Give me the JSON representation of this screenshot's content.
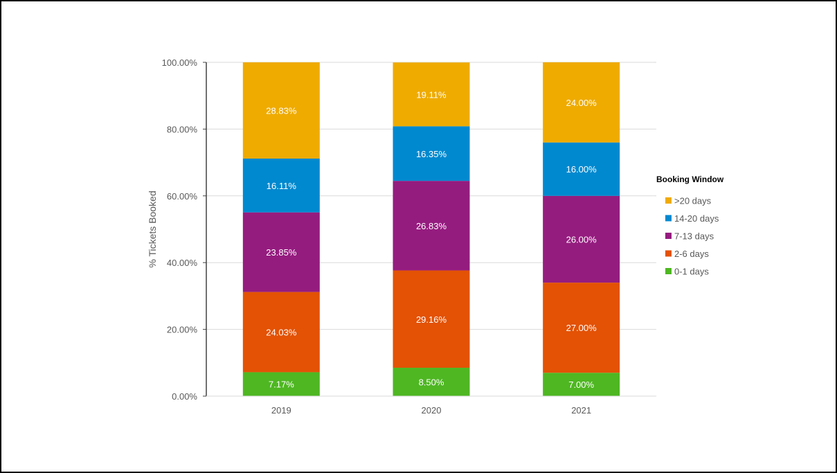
{
  "chart_data": {
    "type": "bar",
    "stacked": true,
    "percent_stacked": true,
    "categories": [
      "2019",
      "2020",
      "2021"
    ],
    "series": [
      {
        "name": "0-1 days",
        "color": "#4EB722",
        "values": [
          7.17,
          8.5,
          7.0
        ],
        "labels": [
          "7.17%",
          "8.50%",
          "7.00%"
        ]
      },
      {
        "name": "2-6 days",
        "color": "#E35205",
        "values": [
          24.03,
          29.16,
          27.0
        ],
        "labels": [
          "24.03%",
          "29.16%",
          "27.00%"
        ]
      },
      {
        "name": "7-13 days",
        "color": "#951C7F",
        "values": [
          23.85,
          26.83,
          26.0
        ],
        "labels": [
          "23.85%",
          "26.83%",
          "26.00%"
        ]
      },
      {
        "name": "14-20 days",
        "color": "#0089CF",
        "values": [
          16.11,
          16.35,
          16.0
        ],
        "labels": [
          "16.11%",
          "16.35%",
          "16.00%"
        ]
      },
      {
        "name": ">20 days",
        "color": "#EFAB00",
        "values": [
          28.83,
          19.11,
          24.0
        ],
        "labels": [
          "28.83%",
          "19.11%",
          "24.00%"
        ]
      }
    ],
    "title": "",
    "xlabel": "",
    "ylabel": "% Tickets Booked",
    "ylim": [
      0,
      100
    ],
    "yticks": [
      "0.00%",
      "20.00%",
      "40.00%",
      "60.00%",
      "80.00%",
      "100.00%"
    ],
    "grid": true,
    "legend": {
      "title": "Booking Window",
      "placement": "right",
      "order": [
        ">20 days",
        "14-20 days",
        "7-13 days",
        "2-6 days",
        "0-1 days"
      ]
    }
  }
}
